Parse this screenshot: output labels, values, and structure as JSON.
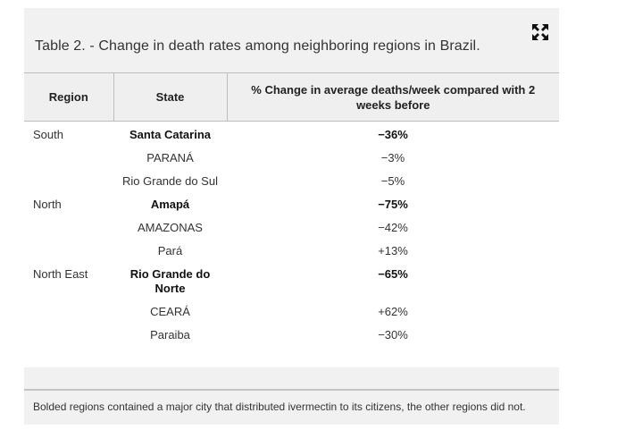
{
  "caption": "Table 2. - Change in death rates among neighboring regions in Brazil.",
  "expand_icon": "expand-arrows-icon",
  "table": {
    "headers": {
      "region": "Region",
      "state": "State",
      "change": "% Change in average deaths/week compared with 2 weeks before"
    },
    "rows": [
      {
        "region": "South",
        "state": "Santa Catarina",
        "change": "−36%",
        "bold": true
      },
      {
        "region": "",
        "state": "PARANÁ",
        "change": "−3%",
        "bold": false
      },
      {
        "region": "",
        "state": "Rio Grande do Sul",
        "change": "−5%",
        "bold": false
      },
      {
        "region": "North",
        "state": "Amapá",
        "change": "−75%",
        "bold": true
      },
      {
        "region": "",
        "state": "AMAZONAS",
        "change": "−42%",
        "bold": false
      },
      {
        "region": "",
        "state": "Pará",
        "change": "+13%",
        "bold": false
      },
      {
        "region": "North East",
        "state": "Rio Grande do Norte",
        "change": "−65%",
        "bold": true
      },
      {
        "region": "",
        "state": "CEARÁ",
        "change": "+62%",
        "bold": false
      },
      {
        "region": "",
        "state": "Paraiba",
        "change": "−30%",
        "bold": false
      }
    ]
  },
  "footnote": "Bolded regions contained a major city that distributed ivermectin to its citizens, the other regions did not."
}
